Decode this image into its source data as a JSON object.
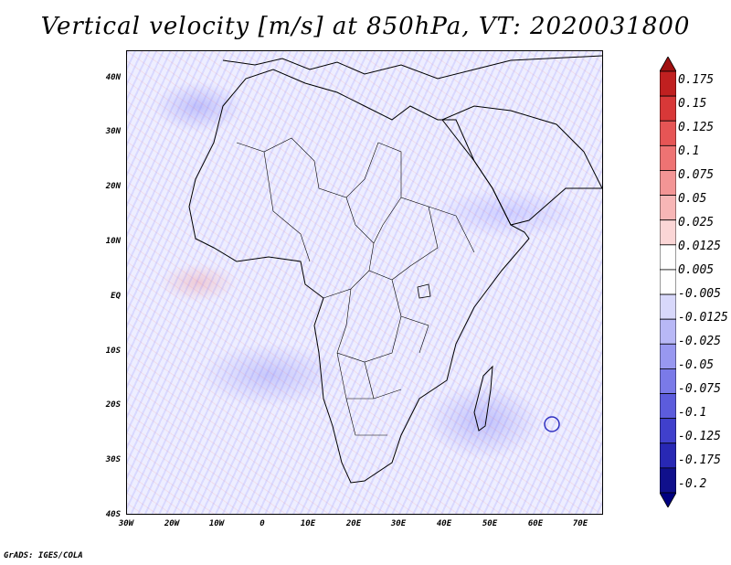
{
  "title": "Vertical velocity [m/s] at 850hPa, VT: 2020031800",
  "credit": "GrADS: IGES/COLA",
  "map": {
    "lat_labels": [
      "40N",
      "30N",
      "20N",
      "10N",
      "EQ",
      "10S",
      "20S",
      "30S",
      "40S"
    ],
    "lat_values": [
      40,
      30,
      20,
      10,
      0,
      -10,
      -20,
      -30,
      -40
    ],
    "lon_labels": [
      "30W",
      "20W",
      "10W",
      "0",
      "10E",
      "20E",
      "30E",
      "40E",
      "50E",
      "60E",
      "70E"
    ],
    "lon_values": [
      -30,
      -20,
      -10,
      0,
      10,
      20,
      30,
      40,
      50,
      60,
      70
    ],
    "lat_range": [
      -40,
      45
    ],
    "lon_range": [
      -30,
      75
    ],
    "colors": {
      "updraft": "#e03030",
      "downdraft": "#5050e0",
      "coast": "#000000"
    }
  },
  "colorbar": {
    "labels": [
      "0.175",
      "0.15",
      "0.125",
      "0.1",
      "0.075",
      "0.05",
      "0.025",
      "0.0125",
      "0.005",
      "-0.005",
      "-0.0125",
      "-0.025",
      "-0.05",
      "-0.075",
      "-0.1",
      "-0.125",
      "-0.175",
      "-0.2"
    ],
    "colors": [
      "#a01010",
      "#c02020",
      "#d83838",
      "#e65555",
      "#ee7373",
      "#f39595",
      "#f7b6b6",
      "#fbd6d6",
      "#ffffff",
      "#ffffff",
      "#d8d8fb",
      "#b8b8f6",
      "#9898f0",
      "#7a7ae8",
      "#5c5cdc",
      "#4040cc",
      "#2828b4",
      "#10108c",
      "#000080"
    ]
  }
}
